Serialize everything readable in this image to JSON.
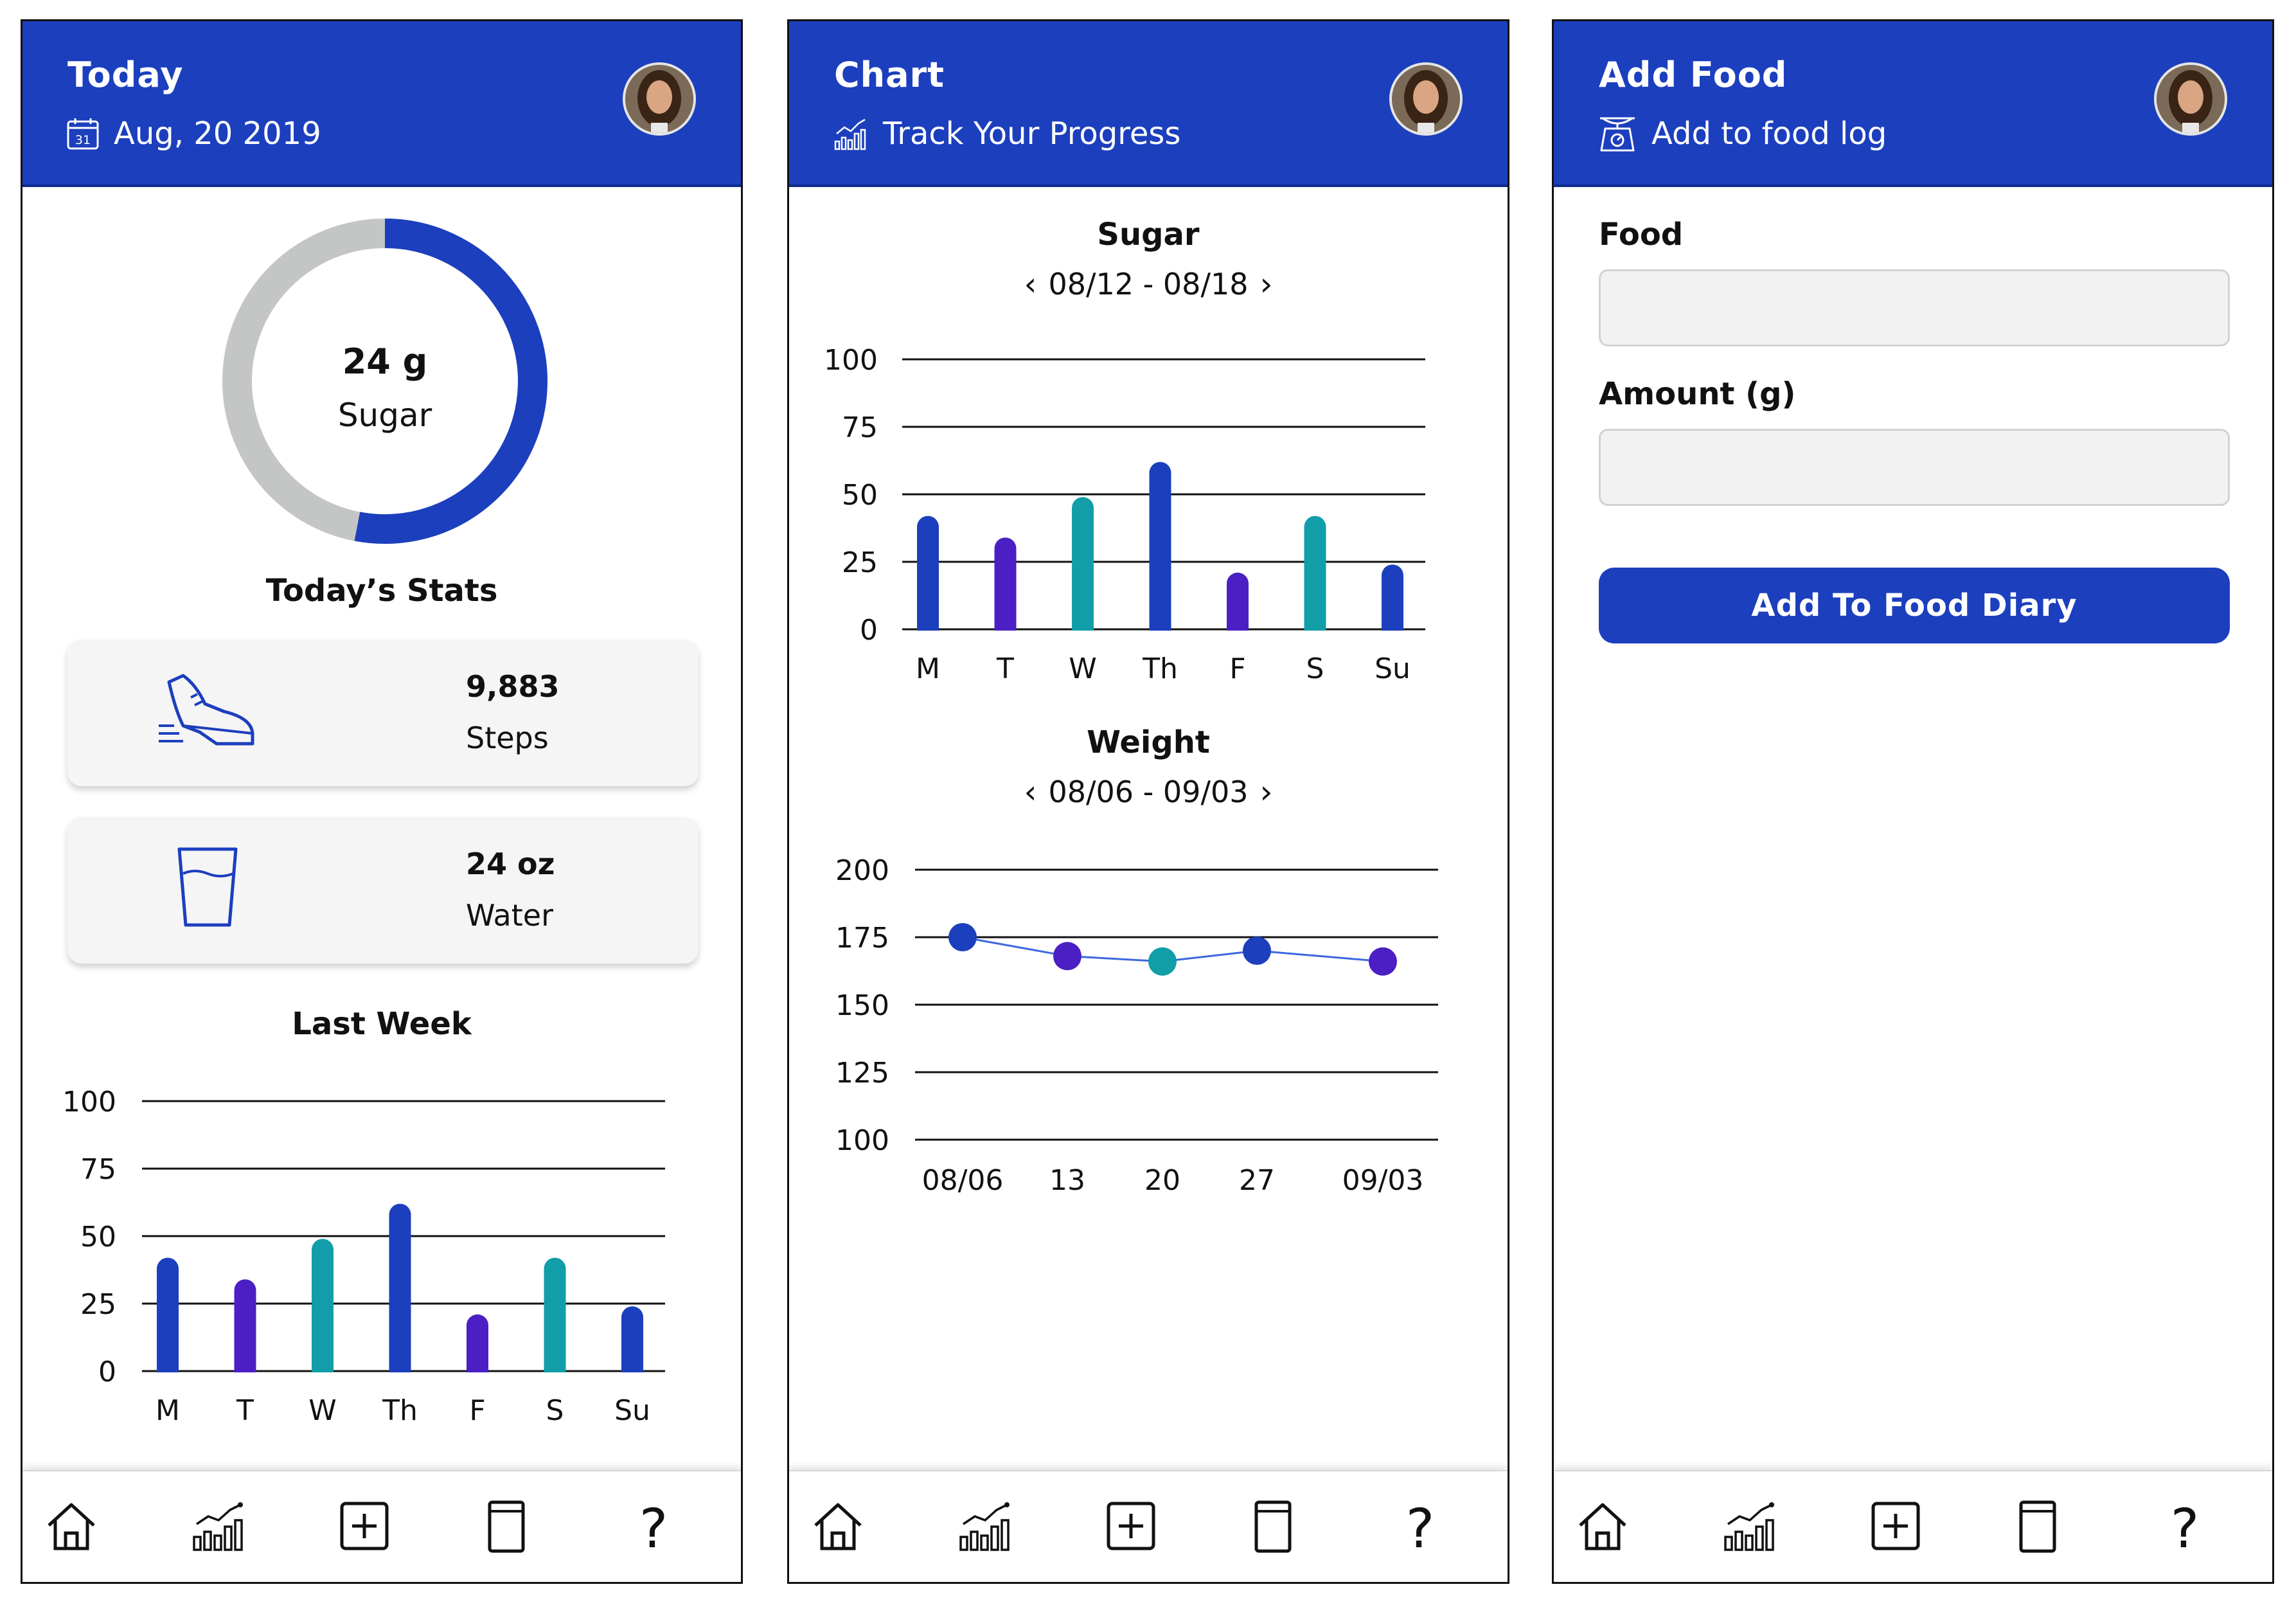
{
  "colors": {
    "primary": "#1c3fbe",
    "purple": "#4b1fc4",
    "teal": "#119ea8",
    "ring_track": "#c4c6c6"
  },
  "screen1": {
    "title": "Today",
    "date_icon_text": "31",
    "date": "Aug, 20 2019",
    "ring": {
      "value": "24 g",
      "label": "Sugar",
      "progress": 0.53
    },
    "stats_title": "Today’s Stats",
    "steps": {
      "value": "9,883",
      "label": "Steps"
    },
    "water": {
      "value": "24 oz",
      "label": "Water"
    },
    "chart_title": "Last Week"
  },
  "screen2": {
    "title": "Chart",
    "subtitle": "Track Your Progress",
    "sugar_title": "Sugar",
    "sugar_range": "08/12 - 08/18",
    "weight_title": "Weight",
    "weight_range": "08/06 - 09/03",
    "prev_arrow": "‹",
    "next_arrow": "›"
  },
  "screen3": {
    "title": "Add Food",
    "subtitle": "Add to food log",
    "food_label": "Food",
    "food_value": "",
    "amount_label": "Amount (g)",
    "amount_value": "",
    "button_label": "Add To Food Diary"
  },
  "nav": {
    "help": "?"
  },
  "chart_data": [
    {
      "type": "bar",
      "title": "Last Week",
      "categories": [
        "M",
        "T",
        "W",
        "Th",
        "F",
        "S",
        "Su"
      ],
      "values": [
        42,
        34,
        49,
        62,
        21,
        42,
        24
      ],
      "colors": [
        "#1c3fbe",
        "#4b1fc4",
        "#119ea8",
        "#1c3fbe",
        "#4b1fc4",
        "#119ea8",
        "#1c3fbe"
      ],
      "yticks": [
        "100",
        "75",
        "50",
        "25",
        "0"
      ],
      "ylim": [
        0,
        100
      ]
    },
    {
      "type": "bar",
      "title": "Sugar",
      "categories": [
        "M",
        "T",
        "W",
        "Th",
        "F",
        "S",
        "Su"
      ],
      "values": [
        42,
        34,
        49,
        62,
        21,
        42,
        24
      ],
      "colors": [
        "#1c3fbe",
        "#4b1fc4",
        "#119ea8",
        "#1c3fbe",
        "#4b1fc4",
        "#119ea8",
        "#1c3fbe"
      ],
      "yticks": [
        "100",
        "75",
        "50",
        "25",
        "0"
      ],
      "ylim": [
        0,
        100
      ]
    },
    {
      "type": "line",
      "title": "Weight",
      "xlabels": [
        "08/06",
        "13",
        "20",
        "27",
        "09/03"
      ],
      "x": [
        "08/06",
        "08/13",
        "08/20",
        "08/27",
        "09/03"
      ],
      "values": [
        175,
        168,
        166,
        170,
        166
      ],
      "colors": [
        "#1c3fbe",
        "#4b1fc4",
        "#119ea8",
        "#1c3fbe",
        "#4b1fc4"
      ],
      "yticks": [
        "200",
        "175",
        "150",
        "125",
        "100"
      ],
      "ylim": [
        100,
        200
      ]
    }
  ]
}
